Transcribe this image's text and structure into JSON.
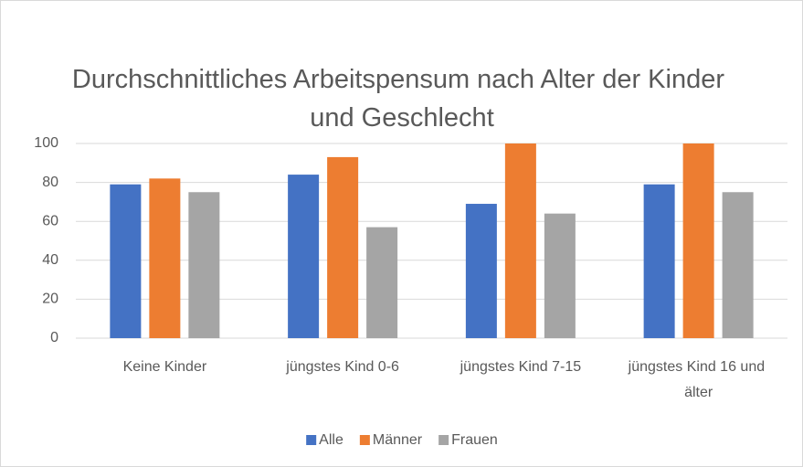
{
  "chart_data": {
    "type": "bar",
    "title": "Durchschnittliches Arbeitspensum nach Alter der Kinder und Geschlecht",
    "categories": [
      "Keine Kinder",
      "jüngstes Kind 0-6",
      "jüngstes Kind 7-15",
      "jüngstes Kind 16 und älter"
    ],
    "series": [
      {
        "name": "Alle",
        "color": "#4472c4",
        "values": [
          79,
          84,
          69,
          79
        ]
      },
      {
        "name": "Männer",
        "color": "#ed7d31",
        "values": [
          82,
          93,
          100,
          100
        ]
      },
      {
        "name": "Frauen",
        "color": "#a5a5a5",
        "values": [
          75,
          57,
          64,
          75
        ]
      }
    ],
    "ylim": [
      0,
      100
    ],
    "yticks": [
      0,
      20,
      40,
      60,
      80,
      100
    ],
    "grid": true,
    "legend": "bottom"
  }
}
